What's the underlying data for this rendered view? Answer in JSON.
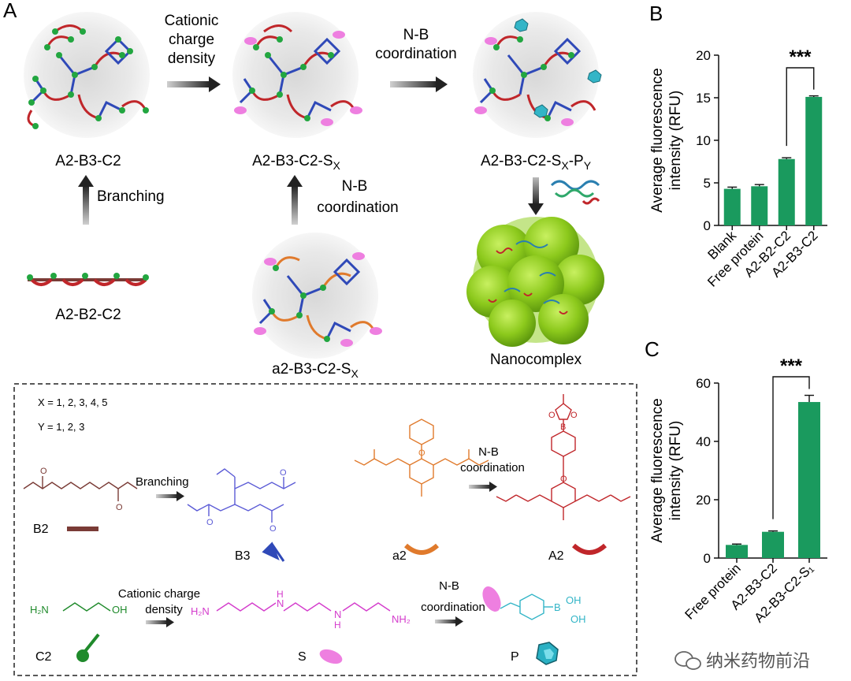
{
  "panels": {
    "a": "A",
    "b": "B",
    "c": "C"
  },
  "panel_a": {
    "labels": {
      "a2b3c2": "A2-B3-C2",
      "a2b3c2_sx_base": "A2-B3-C2-S",
      "a2b3c2_sx_sub": "X",
      "a2b3c2_sxpy_base1": "A2-B3-C2-S",
      "a2b3c2_sxpy_sub1": "X",
      "a2b3c2_sxpy_mid": "-P",
      "a2b3c2_sxpy_sub2": "Y",
      "a2b2c2": "A2-B2-C2",
      "lower_a2b3c2_sx_base": "a2-B3-C2-S",
      "lower_a2b3c2_sx_sub": "X",
      "nanocomplex": "Nanocomplex"
    },
    "arrows": {
      "cationic_line1": "Cationic",
      "cationic_line2": "charge",
      "cationic_line3": "density",
      "nb_top_line1": "N-B",
      "nb_top_line2": "coordination",
      "branching": "Branching",
      "nb_mid_line1": "N-B",
      "nb_mid_line2": "coordination"
    }
  },
  "legend_box": {
    "x_values": "X = 1, 2, 3, 4, 5",
    "y_values": "Y = 1, 2, 3",
    "branching": "Branching",
    "nb_line1": "N-B",
    "nb_line2": "coordination",
    "cationic_line1": "Cationic charge",
    "cationic_line2": "density",
    "nb2_line1": "N-B",
    "nb2_line2": "coordination",
    "labels": {
      "b2": "B2",
      "b3": "B3",
      "a2_lower": "a2",
      "a2_upper": "A2",
      "c2": "C2",
      "s": "S",
      "p": "P"
    },
    "atoms": {
      "h2n_c2": "H₂N",
      "oh_c2": "OH",
      "h2n_s": "H₂N",
      "h_1": "H",
      "n_1": "N",
      "n_2": "N",
      "h_2": "H",
      "nh2_s": "NH₂",
      "oh_p1": "OH",
      "b_p": "B",
      "oh_p2": "OH",
      "o": "O",
      "b": "B"
    }
  },
  "colors": {
    "green_bar": "#1a9a5e",
    "a2_red": "#c0262a",
    "a2_orange": "#e07a2c",
    "b2_brown": "#7a3b36",
    "b3_blue": "#2f49b8",
    "s_pink": "#ee7fe0",
    "p_cyan": "#33b5c7",
    "c2_green": "#1f8a2b",
    "mol_purple": "#5b5bd6",
    "mol_pink": "#d43ccc"
  },
  "chart_data": [
    {
      "panel": "B",
      "type": "bar",
      "categories": [
        "Blank",
        "Free protein",
        "A2-B2-C2",
        "A2-B3-C2"
      ],
      "values": [
        4.3,
        4.6,
        7.8,
        15.1
      ],
      "errors": [
        0.2,
        0.2,
        0.15,
        0.12
      ],
      "ylabel": "Average fluorescence intensity (RFU)",
      "ylabel_line1": "Average fluorescence",
      "ylabel_line2": "intensity (RFU)",
      "ylim": [
        0,
        20
      ],
      "yticks": [
        0,
        5,
        10,
        15,
        20
      ],
      "significance": "***",
      "significance_pair": [
        2,
        3
      ]
    },
    {
      "panel": "C",
      "type": "bar",
      "categories": [
        "Free protein",
        "A2-B3-C2",
        "A2-B3-C2-S₁"
      ],
      "values": [
        4.5,
        9.0,
        53.5
      ],
      "errors": [
        0.3,
        0.3,
        2.3
      ],
      "ylabel": "Average fluorescence intensity (RFU)",
      "ylabel_line1": "Average fluorescence",
      "ylabel_line2": "intensity (RFU)",
      "ylim": [
        0,
        60
      ],
      "yticks": [
        0,
        20,
        40,
        60
      ],
      "significance": "***",
      "significance_pair": [
        1,
        2
      ]
    }
  ],
  "watermark": "纳米药物前沿"
}
